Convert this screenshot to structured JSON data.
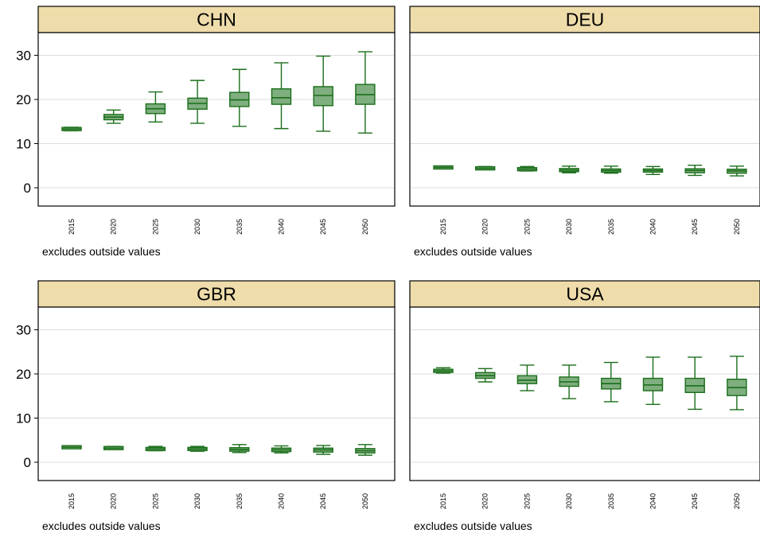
{
  "chart_data": {
    "type": "boxplot",
    "layout": "2x2 small multiples",
    "shared_y_axis": {
      "ticks": [
        0,
        10,
        20,
        30
      ],
      "ylim": [
        -4,
        40
      ]
    },
    "x_categories": [
      "2015",
      "2020",
      "2025",
      "2030",
      "2035",
      "2040",
      "2045",
      "2050"
    ],
    "note": "excludes outside values",
    "colors": {
      "box_fill": "#7fae7f",
      "box_stroke": "#1a6e1a",
      "header_fill": "#eedcaa",
      "grid": "#dcdcdc"
    },
    "panels": [
      {
        "title": "CHN",
        "boxes": [
          {
            "year": "2015",
            "min": 12.9,
            "q1": 13.1,
            "median": 13.3,
            "q3": 13.5,
            "max": 13.7
          },
          {
            "year": "2020",
            "min": 14.6,
            "q1": 15.4,
            "median": 16.0,
            "q3": 16.6,
            "max": 17.6
          },
          {
            "year": "2025",
            "min": 14.9,
            "q1": 16.8,
            "median": 17.9,
            "q3": 19.0,
            "max": 21.7
          },
          {
            "year": "2030",
            "min": 14.6,
            "q1": 17.8,
            "median": 19.1,
            "q3": 20.3,
            "max": 24.3
          },
          {
            "year": "2035",
            "min": 13.9,
            "q1": 18.4,
            "median": 19.9,
            "q3": 21.6,
            "max": 26.8
          },
          {
            "year": "2040",
            "min": 13.4,
            "q1": 18.9,
            "median": 20.4,
            "q3": 22.4,
            "max": 28.3
          },
          {
            "year": "2045",
            "min": 12.8,
            "q1": 18.6,
            "median": 20.9,
            "q3": 22.9,
            "max": 29.8
          },
          {
            "year": "2050",
            "min": 12.4,
            "q1": 18.9,
            "median": 21.1,
            "q3": 23.4,
            "max": 30.8
          }
        ]
      },
      {
        "title": "DEU",
        "boxes": [
          {
            "year": "2015",
            "min": 4.4,
            "q1": 4.5,
            "median": 4.6,
            "q3": 4.7,
            "max": 4.8
          },
          {
            "year": "2020",
            "min": 4.1,
            "q1": 4.2,
            "median": 4.4,
            "q3": 4.6,
            "max": 4.8
          },
          {
            "year": "2025",
            "min": 3.8,
            "q1": 4.0,
            "median": 4.2,
            "q3": 4.5,
            "max": 4.8
          },
          {
            "year": "2030",
            "min": 3.4,
            "q1": 3.7,
            "median": 4.0,
            "q3": 4.2,
            "max": 4.9
          },
          {
            "year": "2035",
            "min": 3.3,
            "q1": 3.6,
            "median": 3.9,
            "q3": 4.2,
            "max": 4.9
          },
          {
            "year": "2040",
            "min": 3.0,
            "q1": 3.5,
            "median": 3.9,
            "q3": 4.2,
            "max": 4.8
          },
          {
            "year": "2045",
            "min": 2.8,
            "q1": 3.4,
            "median": 3.9,
            "q3": 4.3,
            "max": 5.1
          },
          {
            "year": "2050",
            "min": 2.7,
            "q1": 3.3,
            "median": 3.8,
            "q3": 4.2,
            "max": 4.9
          }
        ]
      },
      {
        "title": "GBR",
        "boxes": [
          {
            "year": "2015",
            "min": 3.2,
            "q1": 3.3,
            "median": 3.4,
            "q3": 3.5,
            "max": 3.6
          },
          {
            "year": "2020",
            "min": 2.9,
            "q1": 3.0,
            "median": 3.2,
            "q3": 3.4,
            "max": 3.6
          },
          {
            "year": "2025",
            "min": 2.6,
            "q1": 2.8,
            "median": 3.0,
            "q3": 3.3,
            "max": 3.6
          },
          {
            "year": "2030",
            "min": 2.5,
            "q1": 2.7,
            "median": 3.0,
            "q3": 3.3,
            "max": 3.6
          },
          {
            "year": "2035",
            "min": 2.2,
            "q1": 2.5,
            "median": 2.9,
            "q3": 3.3,
            "max": 4.0
          },
          {
            "year": "2040",
            "min": 2.1,
            "q1": 2.4,
            "median": 2.8,
            "q3": 3.2,
            "max": 3.7
          },
          {
            "year": "2045",
            "min": 1.8,
            "q1": 2.3,
            "median": 2.8,
            "q3": 3.2,
            "max": 3.8
          },
          {
            "year": "2050",
            "min": 1.6,
            "q1": 2.1,
            "median": 2.6,
            "q3": 3.1,
            "max": 4.0
          }
        ]
      },
      {
        "title": "USA",
        "boxes": [
          {
            "year": "2015",
            "min": 20.2,
            "q1": 20.4,
            "median": 20.7,
            "q3": 21.0,
            "max": 21.4
          },
          {
            "year": "2020",
            "min": 18.2,
            "q1": 19.0,
            "median": 19.6,
            "q3": 20.3,
            "max": 21.2
          },
          {
            "year": "2025",
            "min": 16.2,
            "q1": 17.8,
            "median": 18.6,
            "q3": 19.6,
            "max": 22.0
          },
          {
            "year": "2030",
            "min": 14.4,
            "q1": 17.2,
            "median": 18.2,
            "q3": 19.3,
            "max": 22.0
          },
          {
            "year": "2035",
            "min": 13.7,
            "q1": 16.6,
            "median": 17.8,
            "q3": 19.0,
            "max": 22.6
          },
          {
            "year": "2040",
            "min": 13.1,
            "q1": 16.2,
            "median": 17.5,
            "q3": 19.0,
            "max": 23.8
          },
          {
            "year": "2045",
            "min": 12.0,
            "q1": 15.8,
            "median": 17.3,
            "q3": 19.0,
            "max": 23.8
          },
          {
            "year": "2050",
            "min": 11.9,
            "q1": 15.1,
            "median": 16.9,
            "q3": 18.8,
            "max": 24.0
          }
        ]
      }
    ]
  }
}
